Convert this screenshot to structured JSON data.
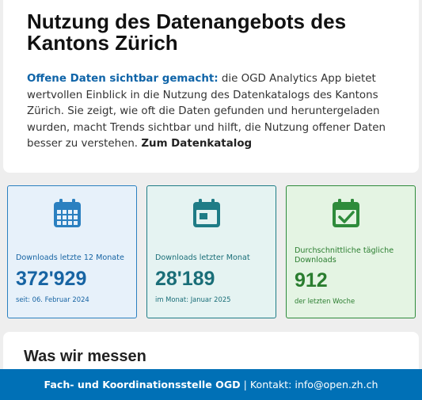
{
  "intro": {
    "title": "Nutzung des Datenangebots des Kantons Zürich",
    "highlight": "Offene Daten sichtbar gemacht:",
    "text": " die OGD Analytics App bietet wertvollen Einblick in die Nutzung des Datenkatalogs des Kantons Zürich. Sie zeigt, wie oft die Daten gefunden und heruntergeladen wurden, macht Trends sichtbar und hilft, die Nutzung offener Daten besser zu verstehen. ",
    "link": "Zum Datenkatalog"
  },
  "stats": [
    {
      "icon": "calendar-grid-icon",
      "label": "Downloads letzte 12 Monate",
      "value": "372'929",
      "sub": "seit: 06. Februar 2024",
      "color": "#2b80c0"
    },
    {
      "icon": "calendar-month-icon",
      "label": "Downloads letzter Monat",
      "value": "28'189",
      "sub": "im Monat: Januar 2025",
      "color": "#1f7c86"
    },
    {
      "icon": "calendar-check-icon",
      "label": "Durchschnittliche tägliche Downloads",
      "value": "912",
      "sub": "der letzten Woche",
      "color": "#2e8b3b"
    }
  ],
  "section": {
    "title": "Was wir messen"
  },
  "footer": {
    "org": "Fach- und Koordinationsstelle OGD",
    "separator": "|",
    "contact": "Kontakt: info@open.zh.ch",
    "background": "#0070b6"
  }
}
